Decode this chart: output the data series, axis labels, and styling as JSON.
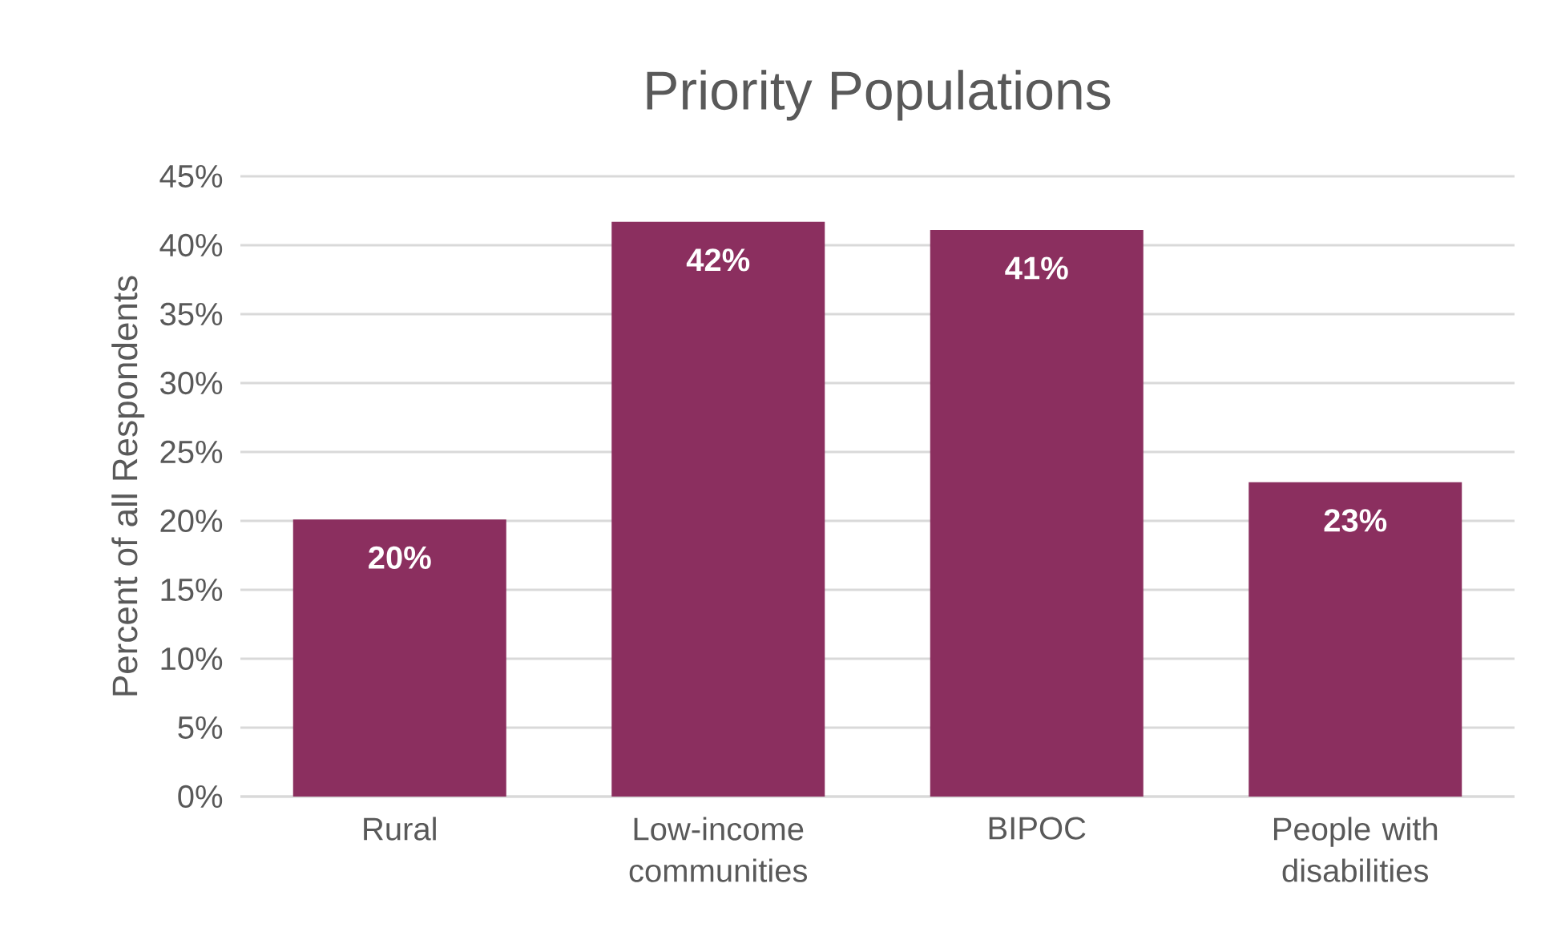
{
  "chart_data": {
    "type": "bar",
    "title": "Priority Populations",
    "ylabel": "Percent of all Respondents",
    "categories": [
      "Rural",
      "Low-income communities",
      "BIPOC",
      "People with disabilities"
    ],
    "values": [
      20.1,
      41.7,
      41.1,
      22.8
    ],
    "value_labels": [
      "20%",
      "42%",
      "41%",
      "23%"
    ],
    "color": "#8b2f5f",
    "ylim": [
      0,
      45
    ],
    "yticks": [
      {
        "value": 0,
        "label": "0%"
      },
      {
        "value": 5,
        "label": "5%"
      },
      {
        "value": 10,
        "label": "10%"
      },
      {
        "value": 15,
        "label": "15%"
      },
      {
        "value": 20,
        "label": "20%"
      },
      {
        "value": 25,
        "label": "25%"
      },
      {
        "value": 30,
        "label": "30%"
      },
      {
        "value": 35,
        "label": "35%"
      },
      {
        "value": 40,
        "label": "40%"
      },
      {
        "value": 45,
        "label": "45%"
      }
    ],
    "grid": "y"
  }
}
